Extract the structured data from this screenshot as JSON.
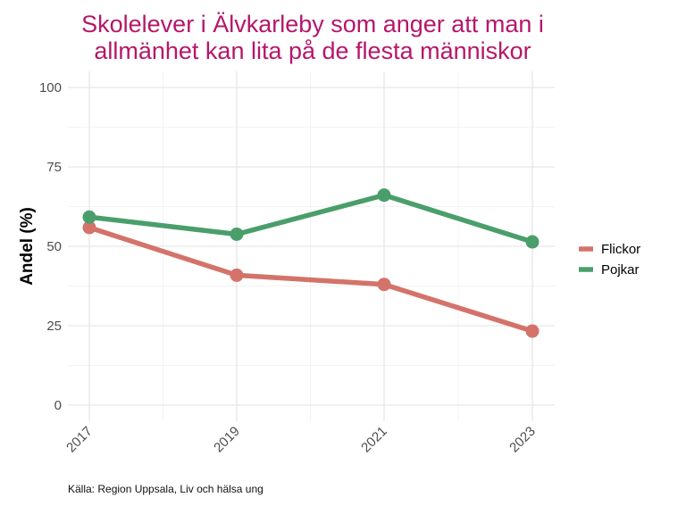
{
  "chart_data": {
    "type": "line",
    "title_lines": [
      "Skolelever i Älvkarleby som anger att man i",
      "allmänhet kan lita på de flesta människor"
    ],
    "xlabel": "",
    "ylabel": "Andel (%)",
    "x": [
      "2017",
      "2019",
      "2021",
      "2023"
    ],
    "ylim": [
      0,
      100
    ],
    "yticks": [
      "0",
      "25",
      "50",
      "75",
      "100"
    ],
    "series": [
      {
        "name": "Flickor",
        "color": "#d4736a",
        "values": [
          55.9,
          40.9,
          38.0,
          23.3
        ]
      },
      {
        "name": "Pojkar",
        "color": "#4a9e6b",
        "values": [
          59.2,
          53.8,
          66.1,
          51.4
        ]
      }
    ],
    "legend_position": "right",
    "grid": true,
    "caption": "Källa: Region Uppsala, Liv och hälsa ung"
  }
}
